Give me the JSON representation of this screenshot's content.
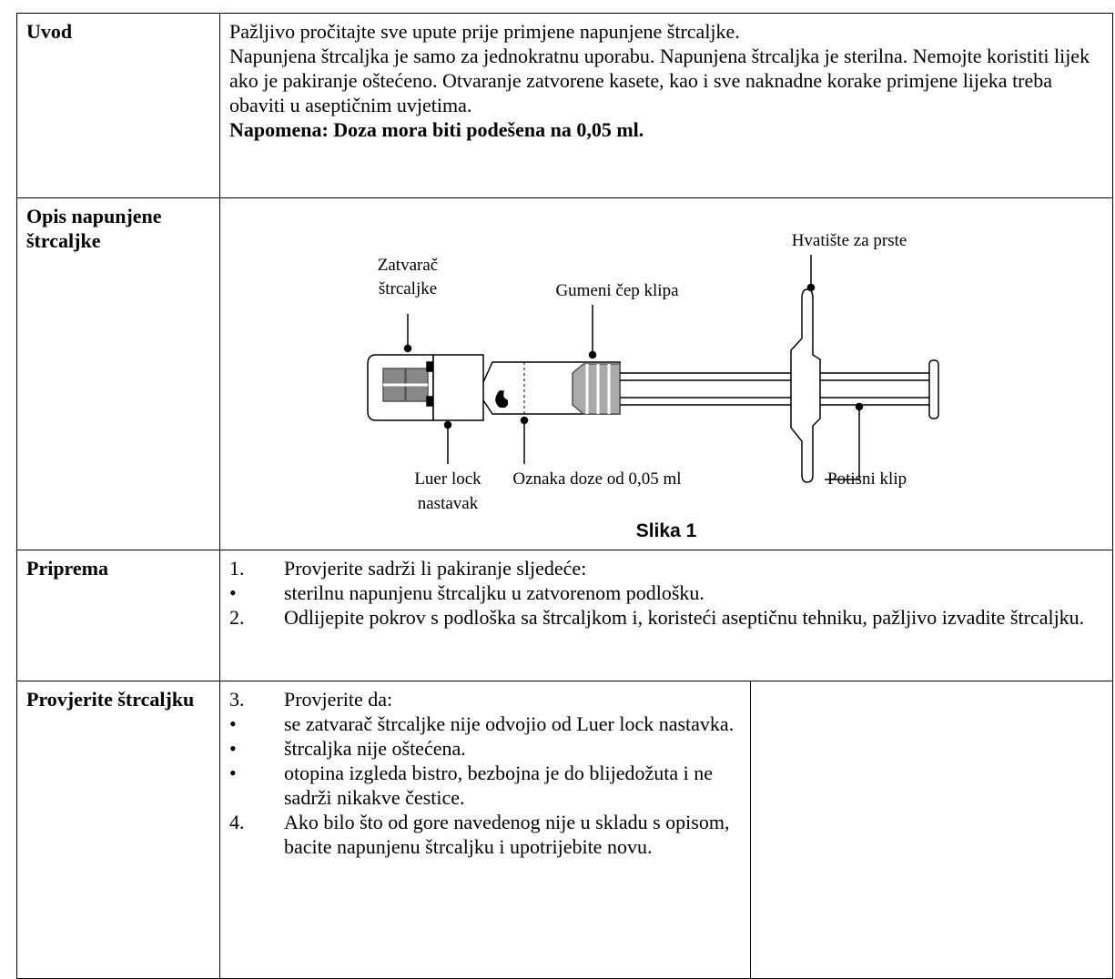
{
  "rows": [
    {
      "label": "Uvod",
      "paragraphs": [
        "Pažljivo pročitajte sve upute prije primjene napunjene štrcaljke.",
        "Napunjena štrcaljka je samo za jednokratnu uporabu. Napunjena štrcaljka je sterilna. Nemojte koristiti lijek ako je pakiranje oštećeno. Otvaranje zatvorene kasete, kao i sve naknadne korake primjene lijeka treba obaviti u aseptičnim uvjetima."
      ],
      "note": "Napomena: Doza mora biti podešena na 0,05 ml."
    },
    {
      "label": "Opis napunjene štrcaljke",
      "figure": {
        "finger_grip": "Hvatište za prste",
        "cap": [
          "Zatvarač",
          "štrcaljke"
        ],
        "stopper": "Gumeni čep klipa",
        "luer": [
          "Luer lock",
          "nastavak"
        ],
        "dose_mark": "Oznaka doze od 0,05 ml",
        "plunger": "Potisni klip",
        "caption": "Slika 1"
      }
    },
    {
      "label": "Priprema",
      "items": [
        {
          "marker": "1.",
          "text": "Provjerite sadrži li pakiranje sljedeće:"
        },
        {
          "marker": "•",
          "text": "sterilnu napunjenu štrcaljku u zatvorenom podlošku."
        },
        {
          "marker": "2.",
          "text": "Odlijepite pokrov s podloška sa štrcaljkom i, koristeći aseptičnu tehniku, pažljivo izvadite štrcaljku."
        }
      ]
    },
    {
      "label": "Provjerite štrcaljku",
      "items": [
        {
          "marker": "3.",
          "text": "Provjerite da:"
        },
        {
          "marker": "•",
          "text": "se zatvarač štrcaljke nije odvojio od Luer lock nastavka."
        },
        {
          "marker": "•",
          "text": "štrcaljka nije oštećena."
        },
        {
          "marker": "•",
          "text": "otopina izgleda bistro, bezbojna je do blijedožuta i ne sadrži nikakve čestice."
        },
        {
          "marker": "4.",
          "text": "Ako bilo što od gore navedenog nije u skladu s opisom, bacite napunjenu štrcaljku i upotrijebite novu."
        }
      ]
    }
  ]
}
